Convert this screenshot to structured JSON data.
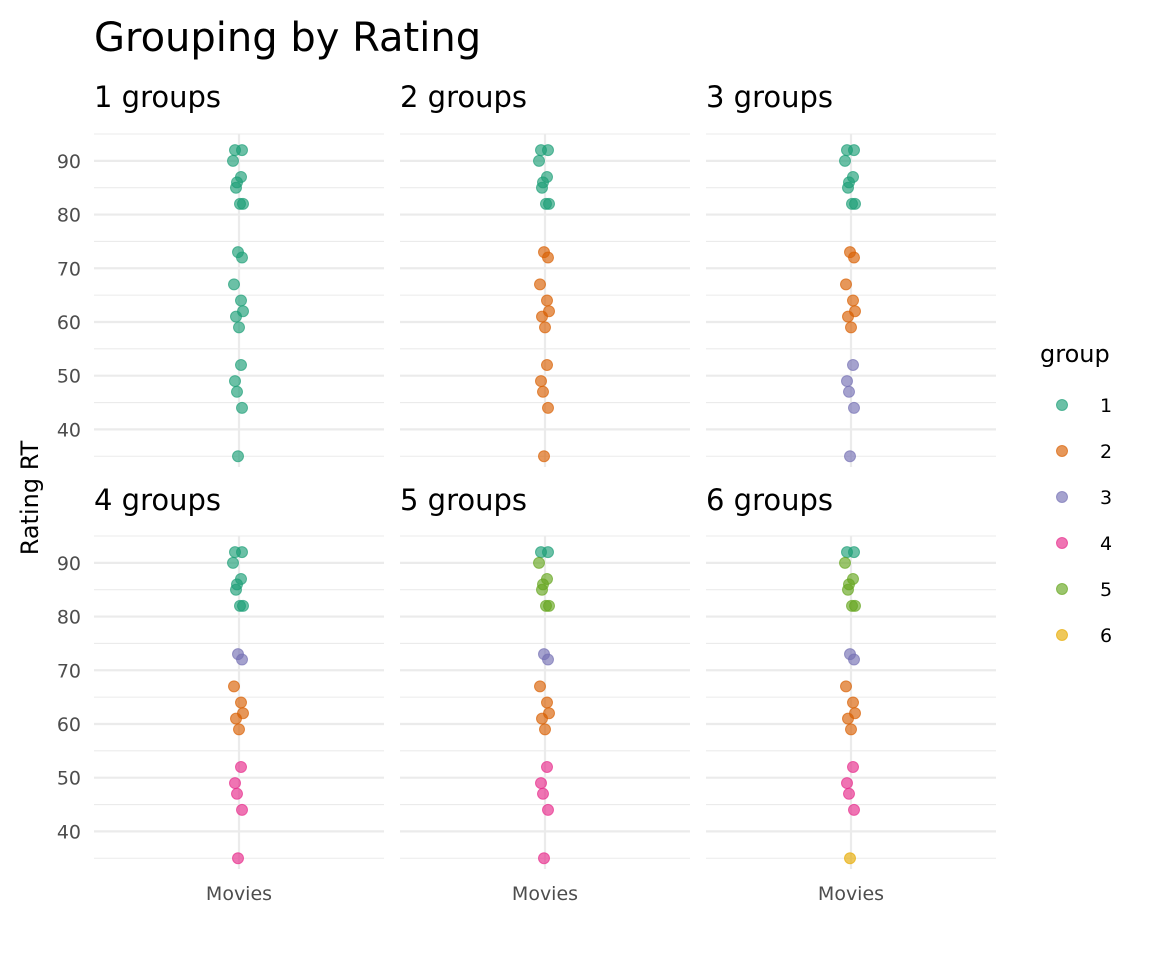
{
  "chart_data": {
    "type": "scatter",
    "title": "Grouping by Rating",
    "ylabel": "Rating RT",
    "xlabel": "",
    "x_categories": [
      "Movies"
    ],
    "ylim": [
      33,
      95
    ],
    "y_ticks": [
      40,
      50,
      60,
      70,
      80,
      90
    ],
    "grid": true,
    "legend": {
      "title": "group",
      "placement": "right",
      "entries": [
        {
          "label": "1",
          "color": "#1B9E77"
        },
        {
          "label": "2",
          "color": "#D95F02"
        },
        {
          "label": "3",
          "color": "#7570B3"
        },
        {
          "label": "4",
          "color": "#E7298A"
        },
        {
          "label": "5",
          "color": "#66A61E"
        },
        {
          "label": "6",
          "color": "#E6AB02"
        }
      ]
    },
    "ratings": [
      92,
      92,
      90,
      87,
      86,
      85,
      82,
      82,
      73,
      72,
      67,
      64,
      62,
      61,
      59,
      52,
      49,
      47,
      44,
      35
    ],
    "facets": [
      {
        "title": "1  groups",
        "groups": [
          1,
          1,
          1,
          1,
          1,
          1,
          1,
          1,
          1,
          1,
          1,
          1,
          1,
          1,
          1,
          1,
          1,
          1,
          1,
          1
        ]
      },
      {
        "title": "2  groups",
        "groups": [
          1,
          1,
          1,
          1,
          1,
          1,
          1,
          1,
          2,
          2,
          2,
          2,
          2,
          2,
          2,
          2,
          2,
          2,
          2,
          2
        ]
      },
      {
        "title": "3  groups",
        "groups": [
          1,
          1,
          1,
          1,
          1,
          1,
          1,
          1,
          2,
          2,
          2,
          2,
          2,
          2,
          2,
          3,
          3,
          3,
          3,
          3
        ]
      },
      {
        "title": "4  groups",
        "groups": [
          1,
          1,
          1,
          1,
          1,
          1,
          1,
          1,
          3,
          3,
          2,
          2,
          2,
          2,
          2,
          4,
          4,
          4,
          4,
          4
        ]
      },
      {
        "title": "5  groups",
        "groups": [
          1,
          1,
          5,
          5,
          5,
          5,
          5,
          5,
          3,
          3,
          2,
          2,
          2,
          2,
          2,
          4,
          4,
          4,
          4,
          4
        ]
      },
      {
        "title": "6  groups",
        "groups": [
          1,
          1,
          5,
          5,
          5,
          5,
          5,
          5,
          3,
          3,
          2,
          2,
          2,
          2,
          2,
          4,
          4,
          4,
          4,
          6
        ]
      }
    ]
  }
}
